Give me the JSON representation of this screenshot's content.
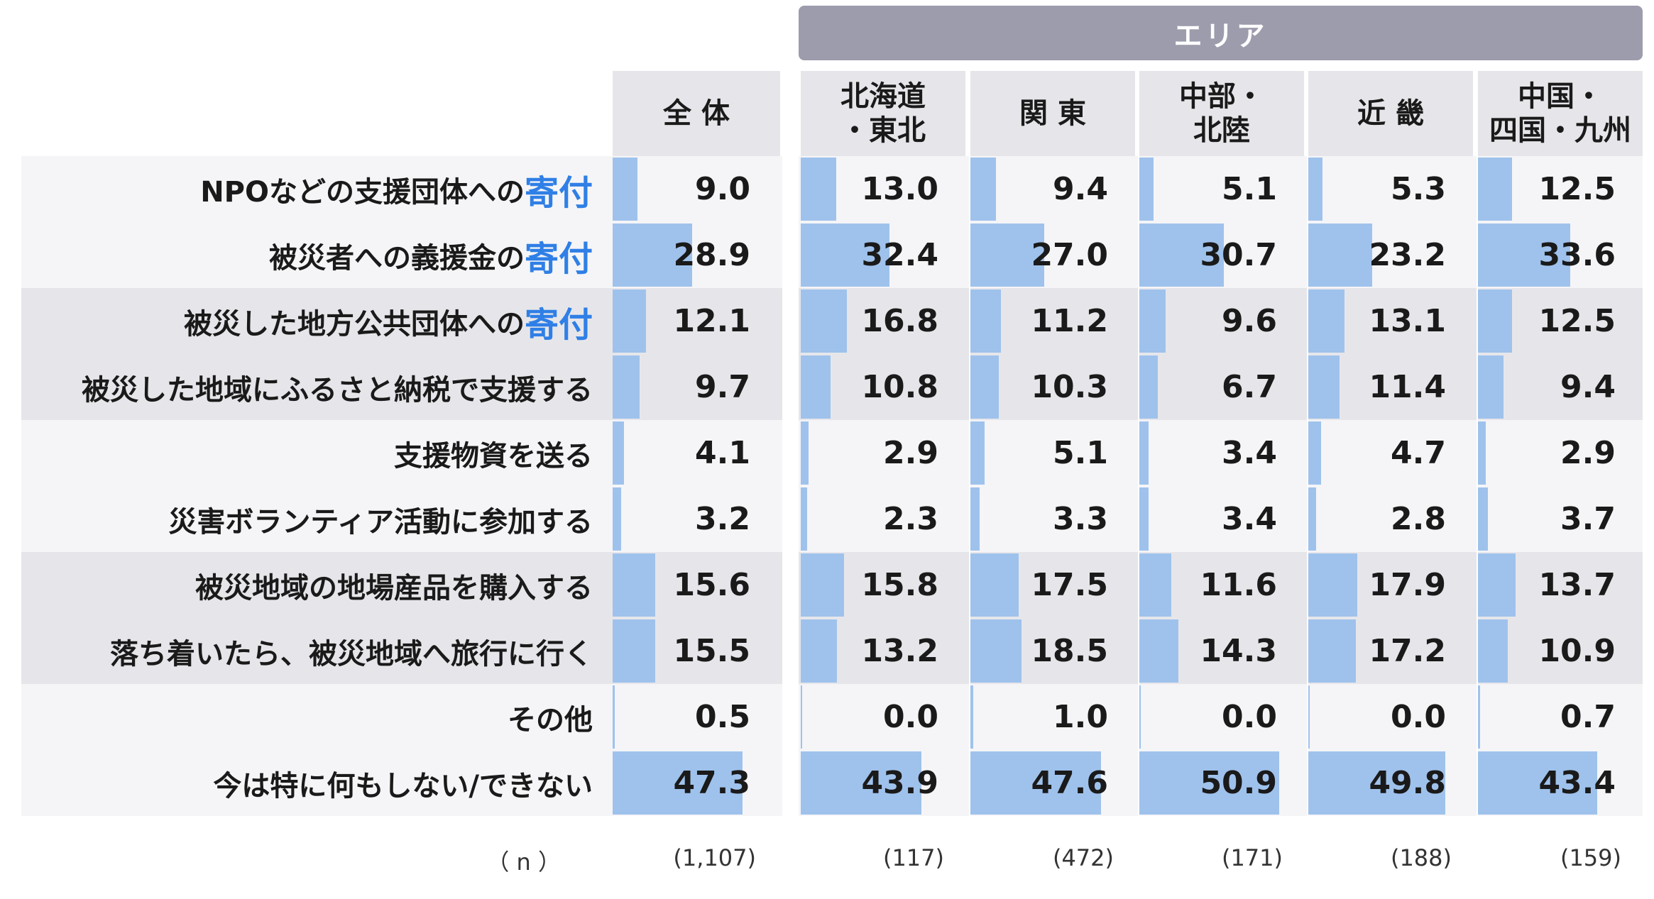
{
  "area_banner": "エリア",
  "chart_data": {
    "type": "table",
    "columns": [
      "全 体",
      "北海道\n・東北",
      "関 東",
      "中部・\n北陸",
      "近 畿",
      "中国・\n四国・九州"
    ],
    "rows": [
      {
        "label": "NPOなどの支援団体への",
        "highlight": "寄付",
        "values": [
          9.0,
          13.0,
          9.4,
          5.1,
          5.3,
          12.5
        ]
      },
      {
        "label": "被災者への義援金の",
        "highlight": "寄付",
        "values": [
          28.9,
          32.4,
          27.0,
          30.7,
          23.2,
          33.6
        ]
      },
      {
        "label": "被災した地方公共団体への",
        "highlight": "寄付",
        "values": [
          12.1,
          16.8,
          11.2,
          9.6,
          13.1,
          12.5
        ]
      },
      {
        "label": "被災した地域にふるさと納税で支援する",
        "highlight": "",
        "values": [
          9.7,
          10.8,
          10.3,
          6.7,
          11.4,
          9.4
        ]
      },
      {
        "label": "支援物資を送る",
        "highlight": "",
        "values": [
          4.1,
          2.9,
          5.1,
          3.4,
          4.7,
          2.9
        ]
      },
      {
        "label": "災害ボランティア活動に参加する",
        "highlight": "",
        "values": [
          3.2,
          2.3,
          3.3,
          3.4,
          2.8,
          3.7
        ]
      },
      {
        "label": "被災地域の地場産品を購入する",
        "highlight": "",
        "values": [
          15.6,
          15.8,
          17.5,
          11.6,
          17.9,
          13.7
        ]
      },
      {
        "label": "落ち着いたら、被災地域へ旅行に行く",
        "highlight": "",
        "values": [
          15.5,
          13.2,
          18.5,
          14.3,
          17.2,
          10.9
        ]
      },
      {
        "label": "その他",
        "highlight": "",
        "values": [
          0.5,
          0.0,
          1.0,
          0.0,
          0.0,
          0.7
        ]
      },
      {
        "label": "今は特に何もしない/できない",
        "highlight": "",
        "values": [
          47.3,
          43.9,
          47.6,
          50.9,
          49.8,
          43.4
        ]
      }
    ],
    "n_label": "（ n ）",
    "n_values": [
      "(1,107)",
      "(117)",
      "(472)",
      "(171)",
      "(188)",
      "(159)"
    ],
    "value_scale_max": 60,
    "bar_color": "#9fc2ec",
    "highlight_color": "#2f7fe6"
  }
}
